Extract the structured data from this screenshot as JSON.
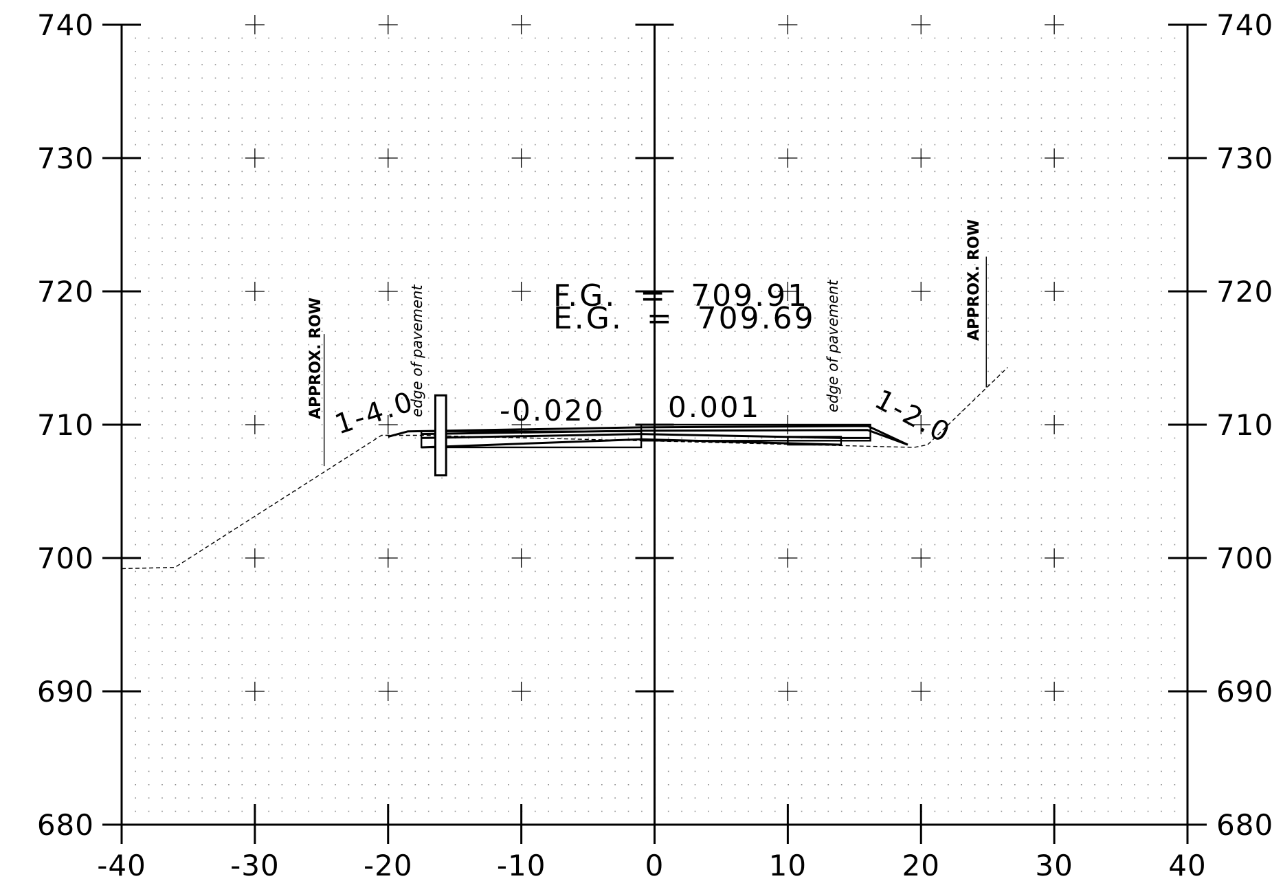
{
  "axes": {
    "x_min": -40,
    "x_max": 40,
    "x_step": 10,
    "y_min": 680,
    "y_max": 740,
    "y_step": 10,
    "x_tick_labels": [
      "-40",
      "-30",
      "-20",
      "-10",
      "0",
      "10",
      "20",
      "30",
      "40"
    ],
    "y_tick_labels": [
      "680",
      "690",
      "700",
      "710",
      "720",
      "730",
      "740"
    ]
  },
  "grid": {
    "dot_spacing": 1,
    "cross_spacing": 10
  },
  "elevations": {
    "fg_text": "F.G.  =  709.91",
    "eg_text": "E.G.  =  709.69"
  },
  "labels": {
    "row_left": "APPROX. ROW",
    "row_right": "APPROX. ROW",
    "edge_left": "edge of pavement",
    "edge_right": "edge of pavement",
    "slope_left": "1-4.0",
    "slope_right": "1-2.0",
    "cross_slope_left": "-0.020",
    "cross_slope_right": "0.001"
  },
  "existing_ground": [
    [
      -40,
      699.2
    ],
    [
      -36,
      699.3
    ],
    [
      -20.5,
      709.2
    ],
    [
      -17.5,
      709.2
    ],
    [
      19.5,
      708.3
    ],
    [
      20.5,
      708.5
    ],
    [
      26.5,
      714.3
    ]
  ],
  "row_posts": [
    {
      "x": -24.8,
      "y_bottom": 706.9,
      "y_top": 716.8
    },
    {
      "x": 24.9,
      "y_bottom": 712.8,
      "y_top": 722.6
    }
  ],
  "pavement_lines": [
    [
      [
        -20,
        709.1
      ],
      [
        -18.5,
        709.5
      ],
      [
        -1,
        709.8
      ],
      [
        16,
        709.9
      ],
      [
        19,
        708.5
      ]
    ],
    [
      [
        -17.5,
        709.3
      ],
      [
        -1,
        709.55
      ],
      [
        16,
        709.6
      ],
      [
        19,
        708.5
      ]
    ],
    [
      [
        -17.5,
        709.0
      ],
      [
        -1,
        709.3
      ],
      [
        14,
        709.0
      ],
      [
        16.2,
        709.0
      ]
    ],
    [
      [
        -17.5,
        708.3
      ],
      [
        -1,
        708.9
      ],
      [
        14,
        708.5
      ]
    ]
  ],
  "pavement_boxes": [
    {
      "x1": -17.5,
      "x2": -1,
      "y1": 708.3,
      "y2": 709.5
    },
    {
      "x1": -1,
      "x2": 16.2,
      "y1": 708.8,
      "y2": 710.0
    },
    {
      "x1": 10,
      "x2": 14,
      "y1": 708.5,
      "y2": 709.1
    }
  ],
  "curb": {
    "x1": -16.3,
    "x2": -15.8,
    "y1": 706.2,
    "y2": 712.2
  }
}
